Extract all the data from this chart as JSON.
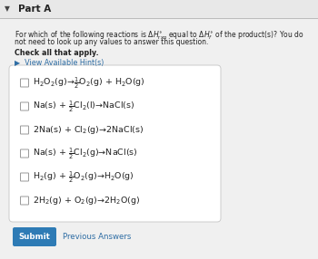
{
  "bg_color": "#f0f0f0",
  "panel_bg": "#ffffff",
  "panel_border": "#cccccc",
  "part_label": "Part A",
  "bold_text": "Check all that apply.",
  "hint_text": "▶  View Available Hint(s)",
  "hint_color": "#2e6da4",
  "reactions": [
    "H$_2$O$_2$(g)→$\\frac{1}{2}$O$_2$(g) + H$_2$O(g)",
    "Na(s) + $\\frac{1}{2}$Cl$_2$(l)→NaCl(s)",
    "2Na(s) + Cl$_2$(g)→2NaCl(s)",
    "Na(s) + $\\frac{1}{2}$Cl$_2$(g)→NaCl(s)",
    "H$_2$(g) + $\\frac{1}{2}$O$_2$(g)→H$_2$O(g)",
    "2H$_2$(g) + O$_2$(g)→2H$_2$O(g)"
  ],
  "submit_bg": "#2e7bb5",
  "submit_text": "Submit",
  "submit_text_color": "#ffffff",
  "prev_text": "Previous Answers",
  "prev_text_color": "#2e6da4",
  "q_line1": "For which of the following reactions is $\\Delta H_{\\mathrm{rxn}}^{\\circ}$ equal to $\\Delta H_f^{\\circ}$ of the product(s)? You do",
  "q_line2": "not need to look up any values to answer this question."
}
